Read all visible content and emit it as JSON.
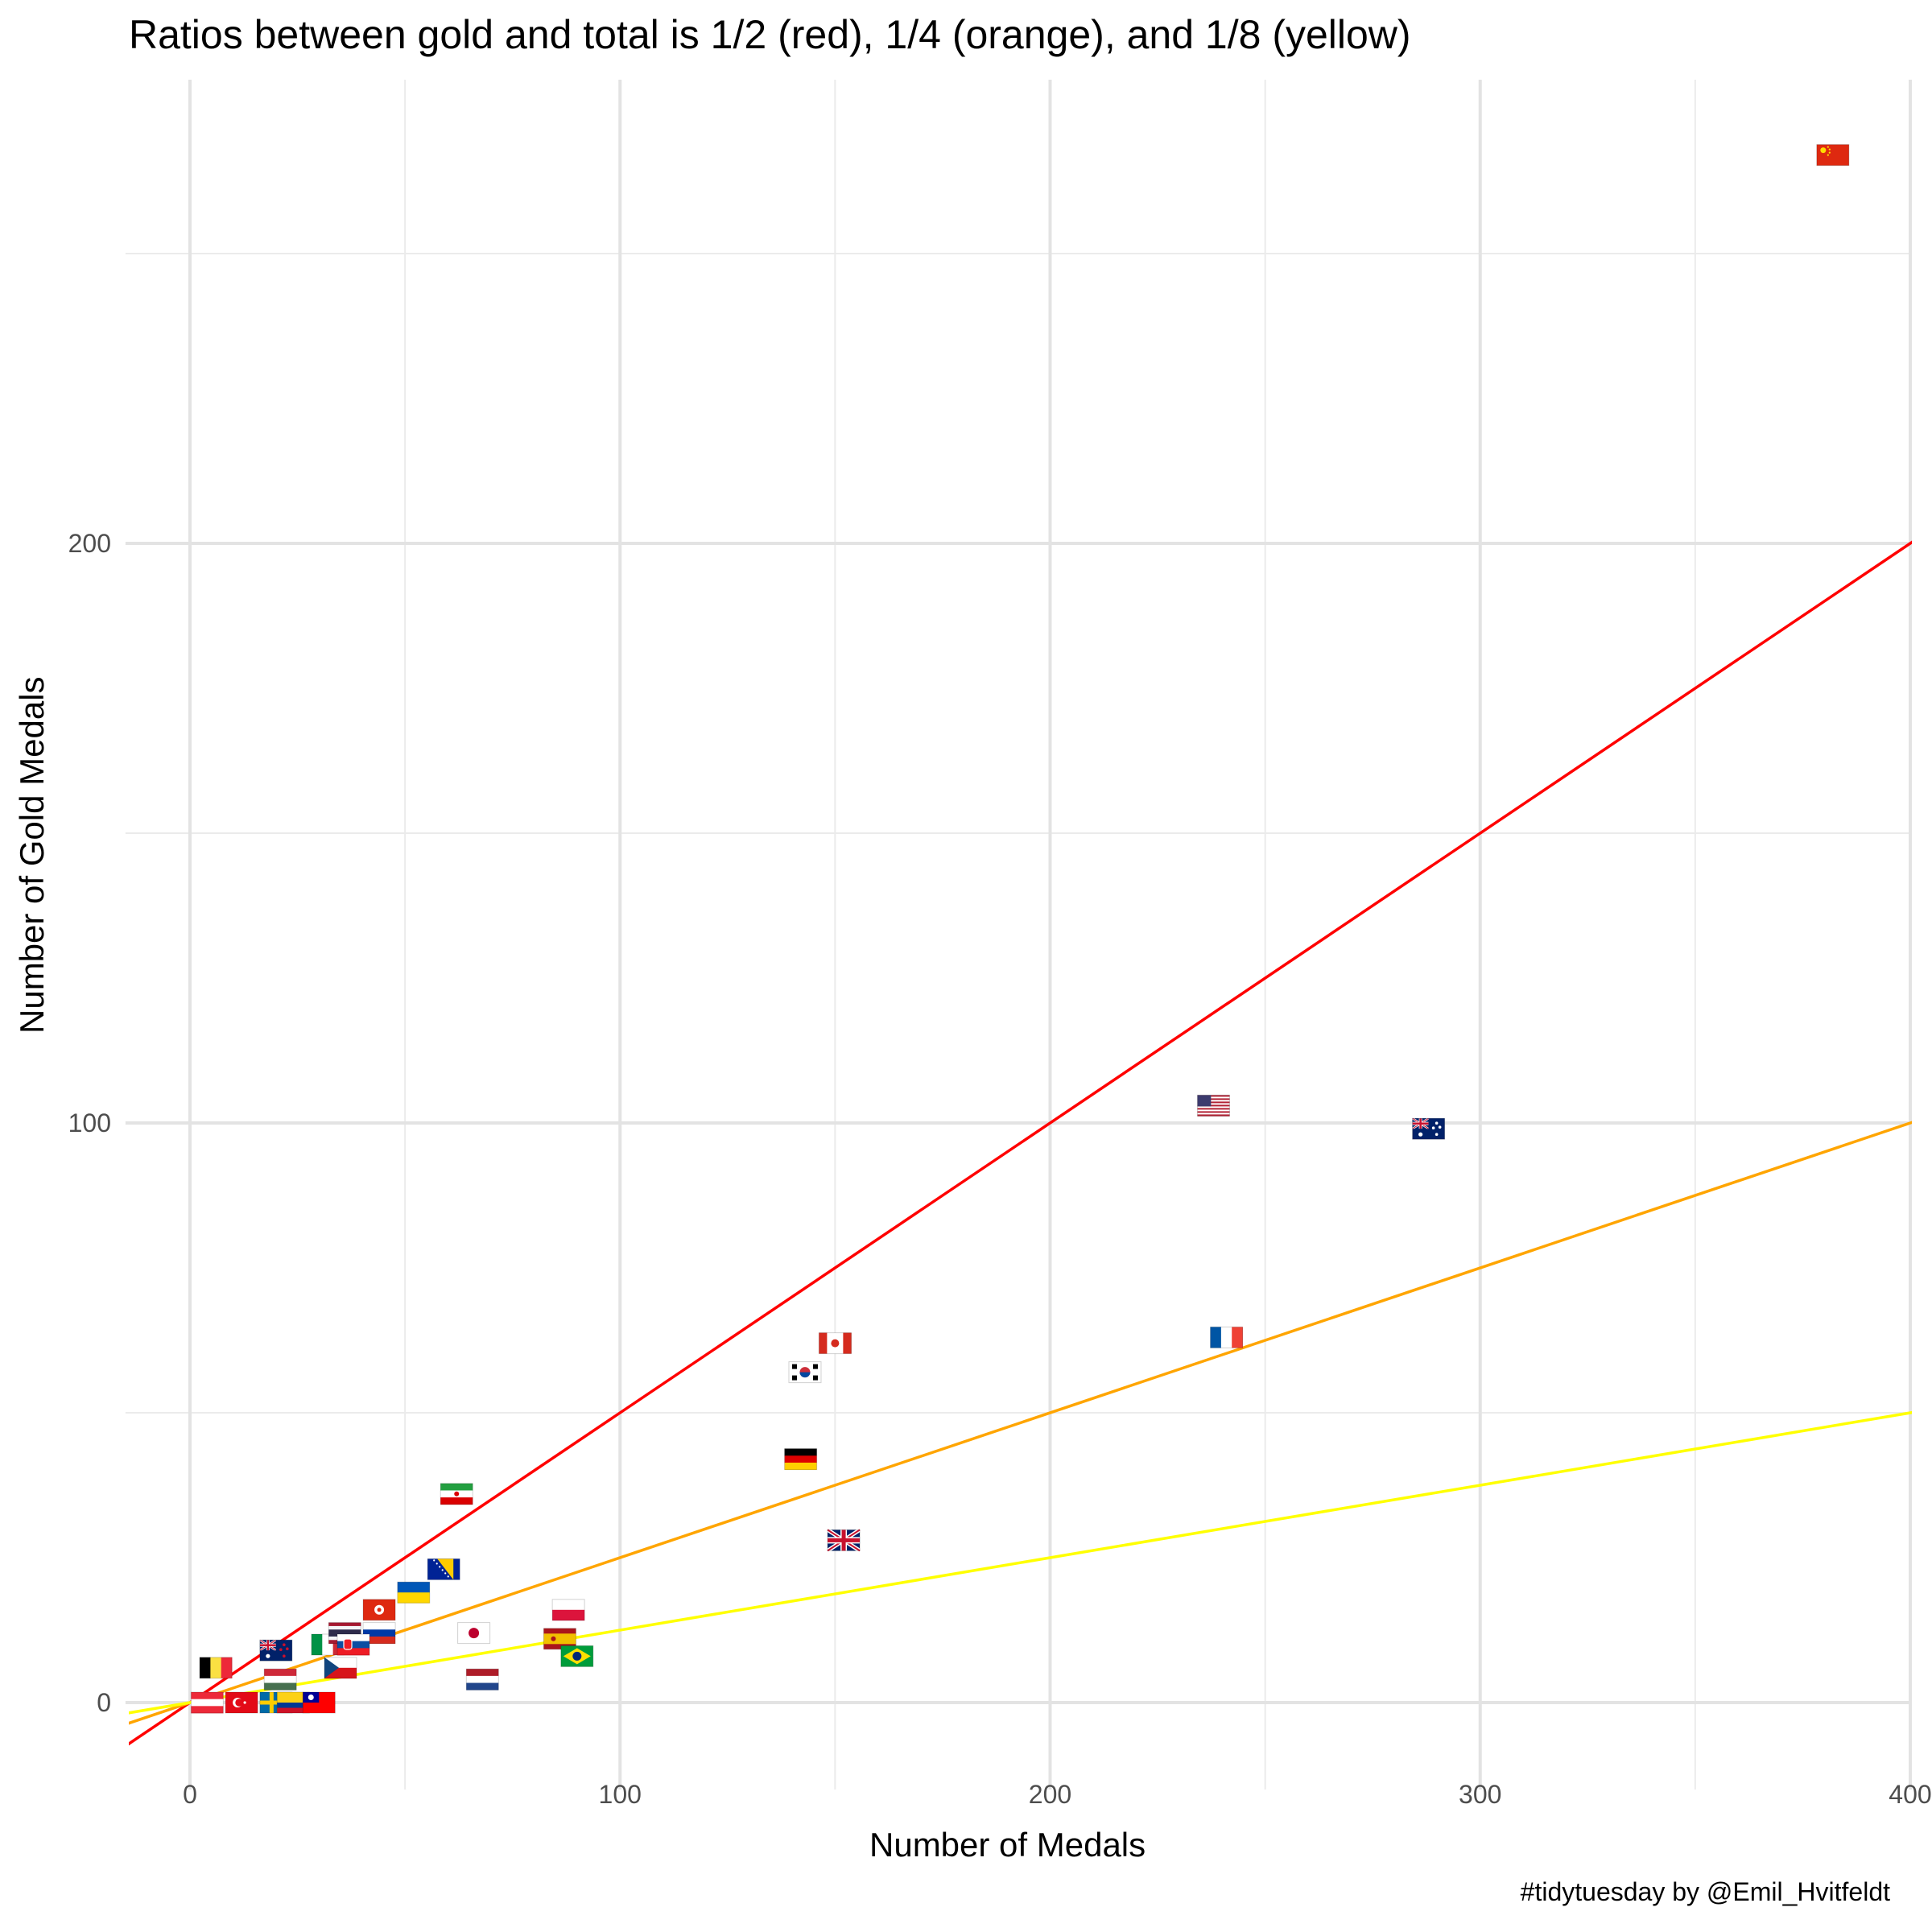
{
  "chart_data": {
    "type": "scatter",
    "title": "Ratios between gold and total is 1/2 (red), 1/4 (orange), and 1/8 (yellow)",
    "xlabel": "Number of Medals",
    "ylabel": "Number of Gold Medals",
    "caption": "#tidytuesday by @Emil_Hvitfeldt",
    "xlim": [
      -15,
      400
    ],
    "ylim": [
      -15,
      280
    ],
    "xticks": [
      0,
      100,
      200,
      300,
      400
    ],
    "yticks": [
      0,
      100,
      200
    ],
    "grid": true,
    "reference_lines": [
      {
        "slope": 0.5,
        "color": "#ff0000"
      },
      {
        "slope": 0.25,
        "color": "#ffa500"
      },
      {
        "slope": 0.125,
        "color": "#ffff00"
      }
    ],
    "points": [
      {
        "country": "China",
        "icon": "flag-cn-icon",
        "x": 382,
        "y": 267
      },
      {
        "country": "United States",
        "icon": "flag-us-icon",
        "x": 238,
        "y": 103
      },
      {
        "country": "Australia",
        "icon": "flag-au-icon",
        "x": 288,
        "y": 99
      },
      {
        "country": "France",
        "icon": "flag-fr-icon",
        "x": 241,
        "y": 63
      },
      {
        "country": "Canada",
        "icon": "flag-ca-icon",
        "x": 150,
        "y": 62
      },
      {
        "country": "South Korea",
        "icon": "flag-kr-icon",
        "x": 143,
        "y": 57
      },
      {
        "country": "Germany",
        "icon": "flag-de-icon",
        "x": 142,
        "y": 42
      },
      {
        "country": "Great Britain",
        "icon": "flag-gb-icon",
        "x": 152,
        "y": 28
      },
      {
        "country": "Iran",
        "icon": "flag-ir-icon",
        "x": 62,
        "y": 36
      },
      {
        "country": "Bosnia and Herzegovina",
        "icon": "flag-ba-icon",
        "x": 59,
        "y": 23
      },
      {
        "country": "Ukraine",
        "icon": "flag-ua-icon",
        "x": 52,
        "y": 19
      },
      {
        "country": "Hong Kong",
        "icon": "flag-hk-icon",
        "x": 44,
        "y": 16
      },
      {
        "country": "Japan",
        "icon": "flag-jp-icon",
        "x": 66,
        "y": 12
      },
      {
        "country": "Poland",
        "icon": "flag-pl-icon",
        "x": 88,
        "y": 16
      },
      {
        "country": "Spain",
        "icon": "flag-es-icon",
        "x": 86,
        "y": 11
      },
      {
        "country": "Brazil",
        "icon": "flag-br-icon",
        "x": 90,
        "y": 8
      },
      {
        "country": "Netherlands",
        "icon": "flag-nl-icon",
        "x": 68,
        "y": 4
      },
      {
        "country": "New Zealand",
        "icon": "flag-nz-icon",
        "x": 20,
        "y": 9
      },
      {
        "country": "Italy",
        "icon": "flag-it-icon",
        "x": 32,
        "y": 10
      },
      {
        "country": "Thailand",
        "icon": "flag-th-icon",
        "x": 36,
        "y": 12
      },
      {
        "country": "Russia",
        "icon": "flag-ru-icon",
        "x": 44,
        "y": 12
      },
      {
        "country": "Slovakia",
        "icon": "flag-sk-icon",
        "x": 38,
        "y": 10
      },
      {
        "country": "Czech Republic",
        "icon": "flag-cz-icon",
        "x": 35,
        "y": 6
      },
      {
        "country": "Belgium",
        "icon": "flag-be-icon",
        "x": 6,
        "y": 6
      },
      {
        "country": "Hungary",
        "icon": "flag-hu-icon",
        "x": 21,
        "y": 4
      },
      {
        "country": "Austria",
        "icon": "flag-at-icon",
        "x": 4,
        "y": 0
      },
      {
        "country": "Turkey",
        "icon": "flag-tr-icon",
        "x": 12,
        "y": 0
      },
      {
        "country": "Sweden",
        "icon": "flag-se-icon",
        "x": 20,
        "y": 0
      },
      {
        "country": "Colombia",
        "icon": "flag-co-icon",
        "x": 24,
        "y": 0
      },
      {
        "country": "Taiwan",
        "icon": "flag-tw-icon",
        "x": 30,
        "y": 0
      }
    ]
  }
}
